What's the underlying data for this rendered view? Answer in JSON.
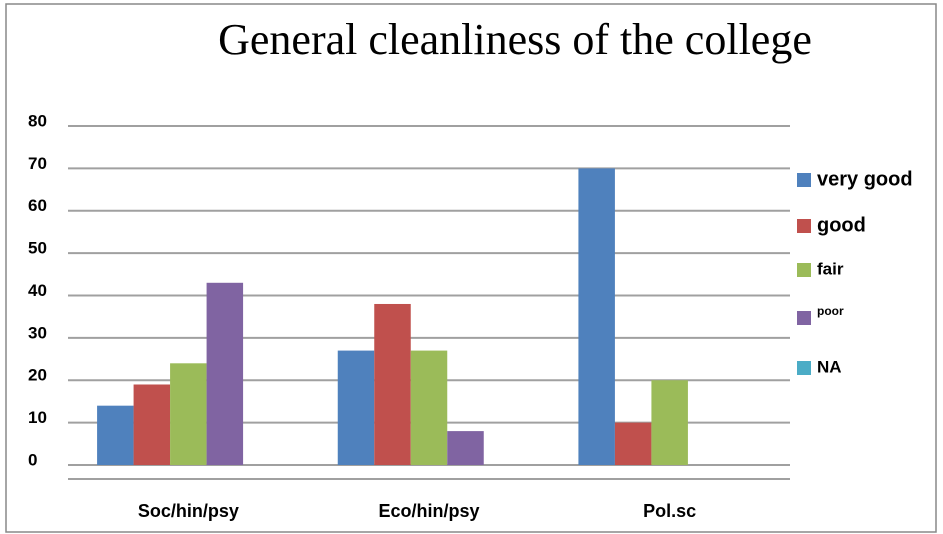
{
  "chart_data": {
    "type": "bar",
    "title": "General cleanliness of the college",
    "categories": [
      "Soc/hin/psy",
      "Eco/hin/psy",
      "Pol.sc"
    ],
    "series": [
      {
        "name": "very good",
        "color": "#4f81bd",
        "values": [
          14,
          27,
          70
        ]
      },
      {
        "name": "good",
        "color": "#c0504d",
        "values": [
          19,
          38,
          10
        ]
      },
      {
        "name": "fair",
        "color": "#9bbb59",
        "values": [
          24,
          27,
          20
        ]
      },
      {
        "name": "poor",
        "color": "#8064a2",
        "values": [
          43,
          8,
          0
        ]
      },
      {
        "name": "NA",
        "color": "#4bacc6",
        "values": [
          0,
          0,
          0
        ]
      }
    ],
    "ylim": [
      0,
      80
    ],
    "yticks": [
      0,
      10,
      20,
      30,
      40,
      50,
      60,
      70,
      80
    ],
    "grid": true,
    "legend": "right"
  }
}
